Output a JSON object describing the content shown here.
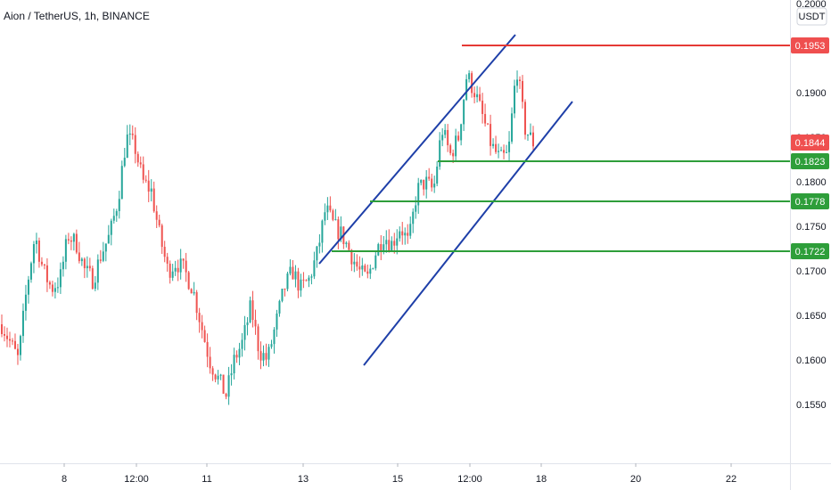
{
  "header": {
    "title": "Aion / TetherUS, 1h, BINANCE"
  },
  "price_scale": {
    "currency_button": "USDT"
  },
  "colors": {
    "up": "#26a69a",
    "down": "#ef5350",
    "channel": "#1e3fa8",
    "support": "#2e9e3a",
    "resistance": "#e53935",
    "badge_green": "#2e9e3a",
    "badge_red": "#ef4f4f"
  },
  "chart_data": {
    "type": "candlestick",
    "title": "Aion / TetherUS, 1h, BINANCE",
    "y_axis": {
      "ticks": [
        "0.2000",
        "0.1900",
        "0.1850",
        "0.1800",
        "0.1750",
        "0.1700",
        "0.1650",
        "0.1600",
        "0.1550"
      ],
      "range": [
        0.1505,
        0.2001
      ]
    },
    "x_axis": {
      "ticks": [
        "8",
        "12:00",
        "11",
        "13",
        "15",
        "12:00",
        "18",
        "20",
        "22"
      ]
    },
    "price_labels": [
      {
        "value": "0.1953",
        "kind": "resistance"
      },
      {
        "value": "0.1844",
        "kind": "current"
      },
      {
        "value": "0.1823",
        "kind": "support"
      },
      {
        "value": "0.1778",
        "kind": "support"
      },
      {
        "value": "0.1722",
        "kind": "support"
      }
    ],
    "horizontal_levels": [
      {
        "price": 0.1953,
        "kind": "resistance"
      },
      {
        "price": 0.1823,
        "kind": "support"
      },
      {
        "price": 0.1778,
        "kind": "support"
      },
      {
        "price": 0.1722,
        "kind": "support"
      }
    ],
    "channel": {
      "upper_price_range": [
        0.1708,
        0.1965
      ],
      "lower_price_range": [
        0.1594,
        0.189
      ]
    },
    "price_path_anchors": [
      0.164,
      0.162,
      0.16,
      0.168,
      0.174,
      0.17,
      0.168,
      0.169,
      0.174,
      0.173,
      0.17,
      0.169,
      0.172,
      0.174,
      0.178,
      0.185,
      0.184,
      0.18,
      0.179,
      0.174,
      0.17,
      0.171,
      0.17,
      0.168,
      0.164,
      0.16,
      0.158,
      0.156,
      0.16,
      0.162,
      0.166,
      0.161,
      0.16,
      0.164,
      0.168,
      0.17,
      0.168,
      0.169,
      0.172,
      0.177,
      0.175,
      0.174,
      0.172,
      0.17,
      0.169,
      0.172,
      0.174,
      0.173,
      0.175,
      0.173,
      0.179,
      0.18,
      0.179,
      0.186,
      0.183,
      0.185,
      0.192,
      0.19,
      0.187,
      0.184,
      0.1825,
      0.183,
      0.193,
      0.186,
      0.1844
    ]
  }
}
